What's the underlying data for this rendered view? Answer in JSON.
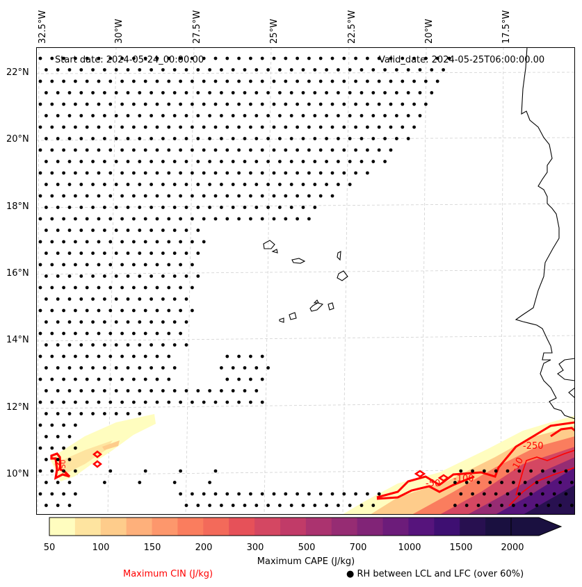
{
  "header": {
    "start_date": "Start date: 2024-05-24_00:00:00",
    "valid_date": "Valid_date: 2024-05-25T06:00:00.00"
  },
  "longitude_labels": [
    "32.5°W",
    "30°W",
    "27.5°W",
    "25°W",
    "22.5°W",
    "20°W",
    "17.5°W"
  ],
  "latitude_labels": [
    "22°N",
    "20°N",
    "18°N",
    "16°N",
    "14°N",
    "12°N",
    "10°N"
  ],
  "map_extent": {
    "lon_min": -32.7,
    "lon_max": -15.3,
    "lat_min": 8.9,
    "lat_max": 22.8
  },
  "contour_labels": [
    "-250",
    "-100",
    "-50",
    "-10",
    "-50"
  ],
  "colorbar": {
    "ticks": [
      "50",
      "100",
      "150",
      "200",
      "300",
      "500",
      "700",
      "1000",
      "1500",
      "2000"
    ],
    "colors": [
      "#fffdbf",
      "#fee4a0",
      "#fecc8b",
      "#feb07b",
      "#fd976c",
      "#fa7d5e",
      "#f36a5a",
      "#e65159",
      "#d44762",
      "#c13b68",
      "#ab336f",
      "#962c73",
      "#812477",
      "#6c1c7a",
      "#56147c",
      "#3e0f72",
      "#281050",
      "#1a1040"
    ],
    "label": "Maximum CAPE (J/kg)"
  },
  "legend": {
    "cin": "Maximum CIN (J/kg)",
    "rh": "● RH between LCL and LFC (over 60%)"
  },
  "colors": {
    "cin_contour": "#ff0000",
    "grid": "#cccccc",
    "coast": "#000000"
  }
}
